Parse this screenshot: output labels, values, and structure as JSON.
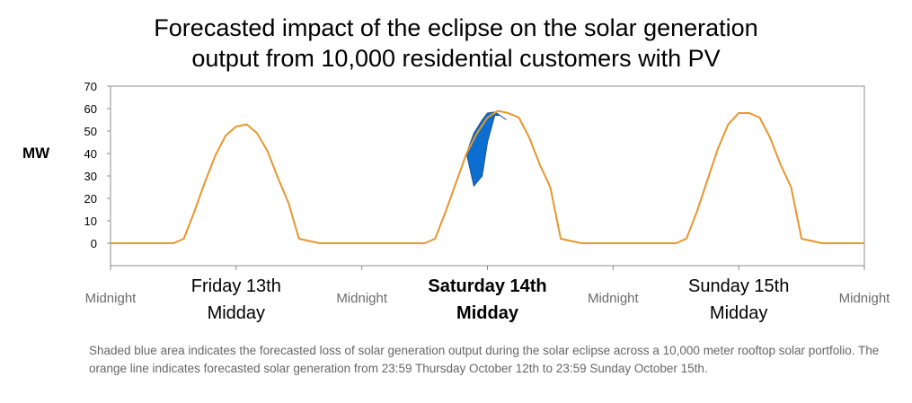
{
  "title_line1": "Forecasted impact of the eclipse on the solar generation",
  "title_line2": "output from 10,000 residential customers with PV",
  "caption": "Shaded blue area indicates the forecasted loss of solar generation output during the solar eclipse across a 10,000 meter rooftop solar portfolio. The orange line indicates forecasted solar generation from 23:59 Thursday October 12th to 23:59 Sunday October 15th.",
  "chart_data": {
    "type": "area",
    "ylabel": "MW",
    "ylim": [
      -10,
      70
    ],
    "yticks": [
      70,
      60,
      50,
      40,
      30,
      20,
      10,
      0
    ],
    "xlim": [
      0,
      72
    ],
    "x_labels": [
      {
        "hour": 0,
        "line1": "Midnight",
        "line2": "",
        "bold": false
      },
      {
        "hour": 12,
        "line1": "Friday 13th",
        "line2": "Midday",
        "bold": false
      },
      {
        "hour": 24,
        "line1": "Midnight",
        "line2": "",
        "bold": false
      },
      {
        "hour": 36,
        "line1": "Saturday 14th",
        "line2": "Midday",
        "bold": true
      },
      {
        "hour": 48,
        "line1": "Midnight",
        "line2": "",
        "bold": false
      },
      {
        "hour": 60,
        "line1": "Sunday 15th",
        "line2": "Midday",
        "bold": false
      },
      {
        "hour": 72,
        "line1": "Midnight",
        "line2": "",
        "bold": false
      }
    ],
    "colors": {
      "forecast": "#E8962E",
      "loss": "#0A6FD0"
    },
    "series": [
      {
        "name": "",
        "x": [
          0,
          6,
          7,
          8,
          9,
          10,
          11,
          12,
          13,
          14,
          15,
          16,
          17,
          18,
          19,
          20,
          21,
          24,
          30,
          31,
          32,
          33,
          34,
          35,
          36,
          37,
          38,
          39,
          40,
          41,
          42,
          43,
          44,
          45,
          48,
          54,
          55,
          56,
          57,
          58,
          59,
          60,
          61,
          62,
          63,
          64,
          65,
          66,
          67,
          68,
          69,
          72
        ],
        "values": [
          0,
          0,
          2,
          14,
          27,
          39,
          48,
          52,
          53,
          49,
          41,
          29,
          18,
          2,
          1,
          0,
          0,
          0,
          0,
          2,
          14,
          27,
          40,
          49,
          56,
          59,
          58,
          56,
          47,
          35,
          25,
          2,
          1,
          0,
          0,
          0,
          2,
          14,
          28,
          42,
          53,
          58,
          58,
          56,
          47,
          35,
          25,
          2,
          1,
          0,
          0,
          0
        ]
      }
    ],
    "eclipse_loss": {
      "x": [
        34.0,
        34.7,
        35.5,
        36.0,
        36.7,
        37.2,
        37.8
      ],
      "without_eclipse": [
        40,
        49,
        55,
        58,
        58.5,
        57,
        55
      ],
      "with_eclipse": [
        40,
        25.5,
        30,
        45,
        57,
        57,
        55
      ]
    }
  }
}
